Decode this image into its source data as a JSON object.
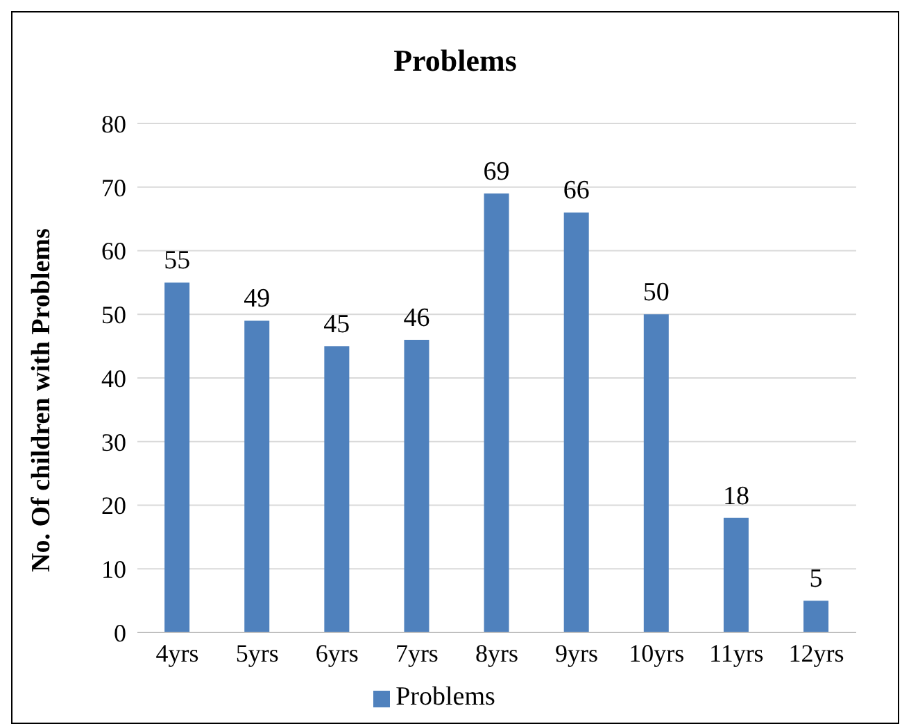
{
  "chart_data": {
    "type": "bar",
    "title": "Problems",
    "ylabel": "No.  Of children with Problems",
    "categories": [
      "4yrs",
      "5yrs",
      "6yrs",
      "7yrs",
      "8yrs",
      "9yrs",
      "10yrs",
      "11yrs",
      "12yrs"
    ],
    "series": [
      {
        "name": "Problems",
        "color": "#4f81bd",
        "values": [
          55,
          49,
          45,
          46,
          69,
          66,
          50,
          18,
          5
        ]
      }
    ],
    "ylim": [
      0,
      80
    ],
    "yticks": [
      0,
      10,
      20,
      30,
      40,
      50,
      60,
      70,
      80
    ],
    "grid": "y",
    "legend": "bottom",
    "data_labels": true
  }
}
